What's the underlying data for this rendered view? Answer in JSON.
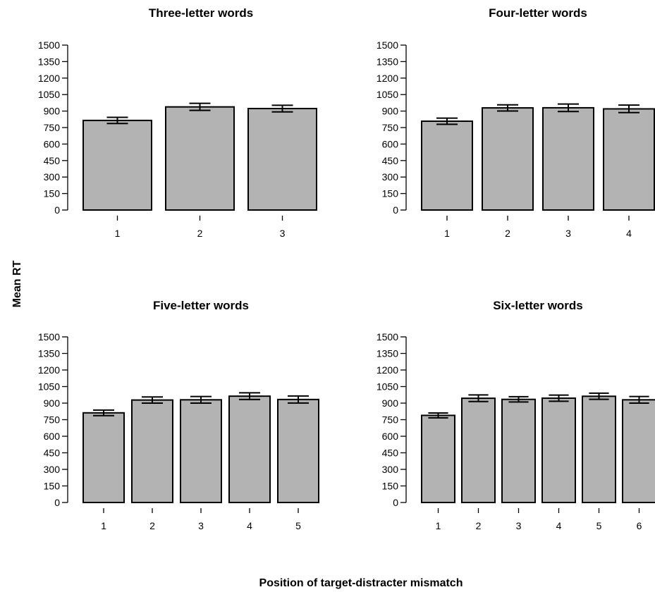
{
  "figure": {
    "ylabel": "Mean RT",
    "xlabel": "Position of target-distracter mismatch"
  },
  "colors": {
    "bar_fill": "#b3b3b3",
    "bar_stroke": "#000000",
    "error_bar": "#000000"
  },
  "chart_data": [
    {
      "type": "bar",
      "title": "Three-letter words",
      "categories": [
        "1",
        "2",
        "3"
      ],
      "values": [
        815,
        938,
        923
      ],
      "errors": [
        28,
        32,
        30
      ],
      "ylim": [
        0,
        1500
      ],
      "yticks": [
        "0",
        "150",
        "300",
        "450",
        "600",
        "750",
        "900",
        "1050",
        "1200",
        "1350",
        "1500"
      ],
      "grid": false
    },
    {
      "type": "bar",
      "title": "Four-letter words",
      "categories": [
        "1",
        "2",
        "3",
        "4"
      ],
      "values": [
        808,
        929,
        930,
        920
      ],
      "errors": [
        28,
        28,
        34,
        34
      ],
      "ylim": [
        0,
        1500
      ],
      "yticks": [
        "0",
        "150",
        "300",
        "450",
        "600",
        "750",
        "900",
        "1050",
        "1200",
        "1350",
        "1500"
      ],
      "grid": false
    },
    {
      "type": "bar",
      "title": "Five-letter words",
      "categories": [
        "1",
        "2",
        "3",
        "4",
        "5"
      ],
      "values": [
        812,
        928,
        930,
        963,
        933
      ],
      "errors": [
        25,
        28,
        30,
        30,
        32
      ],
      "ylim": [
        0,
        1500
      ],
      "yticks": [
        "0",
        "150",
        "300",
        "450",
        "600",
        "750",
        "900",
        "1050",
        "1200",
        "1350",
        "1500"
      ],
      "grid": false
    },
    {
      "type": "bar",
      "title": "Six-letter words",
      "categories": [
        "1",
        "2",
        "3",
        "4",
        "5",
        "6"
      ],
      "values": [
        789,
        944,
        934,
        945,
        962,
        930
      ],
      "errors": [
        22,
        30,
        24,
        28,
        28,
        30
      ],
      "ylim": [
        0,
        1500
      ],
      "yticks": [
        "0",
        "150",
        "300",
        "450",
        "600",
        "750",
        "900",
        "1050",
        "1200",
        "1350",
        "1500"
      ],
      "grid": false
    }
  ]
}
